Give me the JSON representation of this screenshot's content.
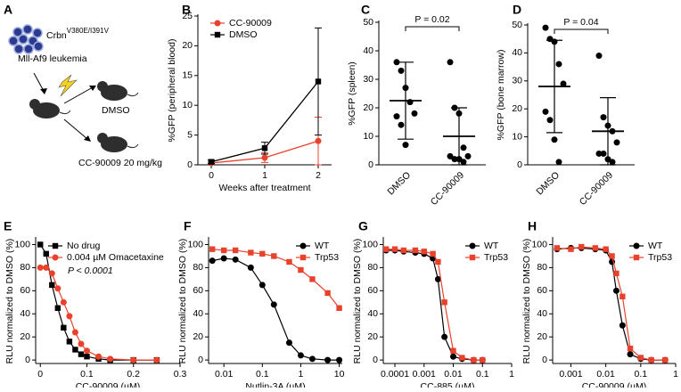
{
  "diagram": {
    "panel": "A",
    "cell_line": "Crbn",
    "mutation": "V380E/I391V",
    "leukemia": "Mll-Af9 leukemia",
    "arms": [
      "DMSO",
      "CC-90009 20 mg/kg"
    ]
  },
  "chart_data": [
    {
      "type": "line",
      "panel": "B",
      "xlabel": "Weeks after treatment",
      "ylabel": "%GFP (peripheral blood)",
      "x": [
        0,
        1,
        2
      ],
      "xlim": [
        -0.25,
        2.25
      ],
      "xticks": [
        0,
        1,
        2
      ],
      "ylim": [
        0,
        25
      ],
      "yticks": [
        0,
        5,
        10,
        15,
        20,
        25
      ],
      "legend": "upper left",
      "series": [
        {
          "name": "CC-90009",
          "color": "#e8412c",
          "marker": "circle",
          "values": [
            0.3,
            1.2,
            4
          ],
          "errors": [
            0.2,
            0.8,
            4
          ]
        },
        {
          "name": "DMSO",
          "color": "#000000",
          "marker": "square",
          "values": [
            0.5,
            2.8,
            14
          ],
          "errors": [
            0.3,
            1,
            9
          ]
        }
      ]
    },
    {
      "type": "strip",
      "panel": "C",
      "ylabel": "%GFP (spleen)",
      "categories": [
        "DMSO",
        "CC-90009"
      ],
      "ylim": [
        0,
        50
      ],
      "yticks": [
        0,
        10,
        20,
        30,
        40,
        50
      ],
      "annotation": "P = 0.02",
      "values": [
        [
          36,
          33,
          27,
          22,
          18,
          17,
          14,
          7
        ],
        [
          36,
          20,
          18,
          6,
          3,
          3,
          2,
          2,
          1
        ]
      ],
      "means": [
        22.5,
        10
      ],
      "sds": [
        13.5,
        10
      ]
    },
    {
      "type": "strip",
      "panel": "D",
      "ylabel": "%GFP (bone marrow)",
      "categories": [
        "DMSO",
        "CC-90009"
      ],
      "ylim": [
        0,
        50
      ],
      "yticks": [
        0,
        10,
        20,
        30,
        40,
        50
      ],
      "annotation": "P = 0.04",
      "values": [
        [
          49,
          45,
          44,
          36,
          29,
          19,
          16,
          9,
          1
        ],
        [
          39,
          17,
          14,
          12,
          8,
          4,
          4,
          2,
          1
        ]
      ],
      "means": [
        28,
        12
      ],
      "sds": [
        16.5,
        12
      ]
    },
    {
      "type": "scatter",
      "panel": "E",
      "xlabel": "CC-90009 (µM)",
      "ylabel": "RLU normalized to DMSO (%)",
      "annotation": "P < 0.0001",
      "legend": "upper left",
      "x": [
        0,
        0.0125,
        0.025,
        0.0375,
        0.05,
        0.0625,
        0.075,
        0.0875,
        0.1,
        0.125,
        0.15,
        0.2,
        0.25
      ],
      "xlim": [
        -0.01,
        0.3
      ],
      "xticks": [
        0,
        0.1,
        0.2,
        0.3
      ],
      "ylim": [
        -3,
        105
      ],
      "yticks": [
        0,
        20,
        40,
        60,
        80,
        100
      ],
      "series": [
        {
          "name": "No drug",
          "color": "#000000",
          "marker": "square",
          "values": [
            100,
            92,
            65,
            45,
            28,
            16,
            9,
            5,
            3,
            1,
            0,
            0,
            0
          ]
        },
        {
          "name": "0.004 µM Omacetaxine",
          "color": "#e8412c",
          "marker": "circle",
          "values": [
            80,
            80,
            75,
            62,
            50,
            38,
            24,
            14,
            8,
            3,
            1,
            0,
            0
          ]
        }
      ]
    },
    {
      "type": "scatter",
      "panel": "F",
      "xlabel": "Nutlin-3A (µM)",
      "ylabel": "RLU normalized to DMSO (%)",
      "xscale": "log",
      "legend": "upper right",
      "x": [
        0.005,
        0.01,
        0.02,
        0.05,
        0.1,
        0.2,
        0.5,
        1,
        2,
        5,
        10
      ],
      "xlim": [
        0.004,
        12
      ],
      "xticks": [
        0.01,
        0.1,
        1,
        10
      ],
      "ylim": [
        -3,
        105
      ],
      "yticks": [
        0,
        20,
        40,
        60,
        80,
        100
      ],
      "series": [
        {
          "name": "WT",
          "color": "#000000",
          "marker": "circle",
          "values": [
            86,
            88,
            87,
            80,
            65,
            48,
            15,
            4,
            1,
            0,
            0
          ]
        },
        {
          "name": "Trp53",
          "color": "#e8412c",
          "marker": "square",
          "values": [
            96,
            95,
            95,
            93,
            92,
            90,
            85,
            78,
            70,
            58,
            45
          ]
        }
      ]
    },
    {
      "type": "scatter",
      "panel": "G",
      "xlabel": "CC-885 (µM)",
      "ylabel": "RLU normalized to DMSO (%)",
      "xscale": "log",
      "legend": "upper right",
      "x": [
        5e-05,
        0.0001,
        0.0002,
        0.0005,
        0.001,
        0.002,
        0.003,
        0.005,
        0.01,
        0.02,
        0.05,
        0.1
      ],
      "xlim": [
        4e-05,
        1
      ],
      "xticks": [
        0.0001,
        0.001,
        0.01,
        0.1,
        1
      ],
      "ylim": [
        -3,
        105
      ],
      "yticks": [
        0,
        20,
        40,
        60,
        80,
        100
      ],
      "series": [
        {
          "name": "WT",
          "color": "#000000",
          "marker": "circle",
          "values": [
            95,
            95,
            94,
            93,
            92,
            88,
            70,
            20,
            3,
            1,
            0,
            0
          ]
        },
        {
          "name": "Trp53",
          "color": "#e8412c",
          "marker": "square",
          "values": [
            96,
            96,
            95,
            95,
            94,
            92,
            85,
            50,
            8,
            2,
            0,
            0
          ]
        }
      ]
    },
    {
      "type": "scatter",
      "panel": "H",
      "xlabel": "CC-90009 (µM)",
      "ylabel": "RLU normalized to DMSO (%)",
      "xscale": "log",
      "legend": "upper right",
      "x": [
        0.0004,
        0.001,
        0.002,
        0.005,
        0.01,
        0.015,
        0.02,
        0.03,
        0.05,
        0.1,
        0.2,
        0.5
      ],
      "xlim": [
        0.0003,
        1
      ],
      "xticks": [
        0.001,
        0.01,
        0.1,
        1
      ],
      "ylim": [
        -3,
        105
      ],
      "yticks": [
        0,
        20,
        40,
        60,
        80,
        100
      ],
      "series": [
        {
          "name": "WT",
          "color": "#000000",
          "marker": "circle",
          "values": [
            96,
            97,
            97,
            96,
            95,
            85,
            60,
            30,
            5,
            1,
            0,
            0
          ]
        },
        {
          "name": "Trp53",
          "color": "#e8412c",
          "marker": "square",
          "values": [
            97,
            96,
            98,
            97,
            96,
            90,
            75,
            55,
            10,
            2,
            0,
            0
          ]
        }
      ]
    }
  ]
}
